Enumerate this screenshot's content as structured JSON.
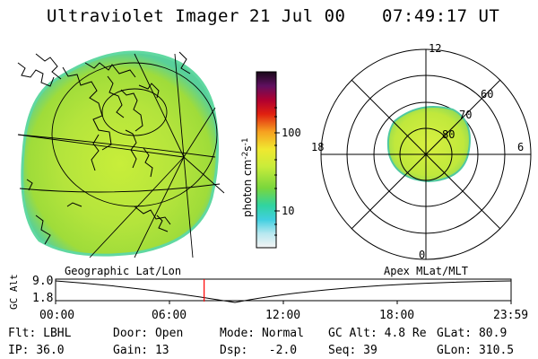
{
  "header": {
    "instrument": "Ultraviolet Imager",
    "date": "21 Jul 00",
    "time": "07:49:17 UT"
  },
  "colorbar": {
    "label": "photon cm",
    "exp1": "-2",
    "mid": "s",
    "exp2": "-1",
    "ticks": [
      "100",
      "10"
    ]
  },
  "left_panel": {
    "caption": "Geographic Lat/Lon"
  },
  "right_panel": {
    "caption": "Apex MLat/MLT",
    "mlt_labels": [
      "12",
      "18",
      "6",
      "0"
    ],
    "lat_labels": [
      "60",
      "70",
      "80"
    ]
  },
  "altitude_plot": {
    "ylabel": "GC Alt",
    "yticks": [
      "9.0",
      "1.8"
    ],
    "xticks": [
      "00:00",
      "06:00",
      "12:00",
      "18:00",
      "23:59"
    ],
    "marker_time_hours": 7.82
  },
  "info": {
    "row1": [
      {
        "key": "Flt:",
        "val": "LBHL"
      },
      {
        "key": "Door:",
        "val": "Open"
      },
      {
        "key": "Mode:",
        "val": "Normal"
      },
      {
        "key": "GC Alt:",
        "val": "4.8 Re"
      },
      {
        "key": "GLat:",
        "val": "80.9"
      }
    ],
    "row2": [
      {
        "key": "IP:",
        "val": "36.0"
      },
      {
        "key": "Gain:",
        "val": "13"
      },
      {
        "key": "Dsp:",
        "val": "-2.0"
      },
      {
        "key": "Seq:",
        "val": "39"
      },
      {
        "key": "GLon:",
        "val": "310.5"
      }
    ]
  },
  "colors": {
    "marker": "#ff0000",
    "background": "#ffffff"
  }
}
